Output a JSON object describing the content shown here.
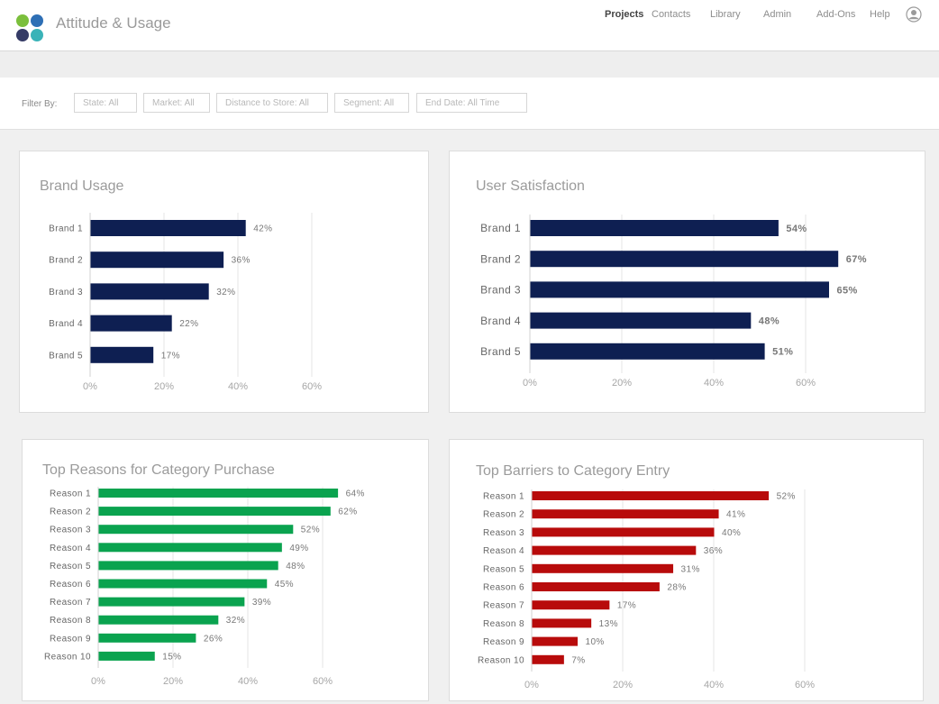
{
  "header": {
    "app_title": "Attitude & Usage",
    "nav": [
      {
        "label": "Projects",
        "active": true
      },
      {
        "label": "Contacts",
        "active": false
      },
      {
        "label": "Library",
        "active": false
      },
      {
        "label": "Admin",
        "active": false
      },
      {
        "label": "Add-Ons",
        "active": false
      },
      {
        "label": "Help",
        "active": false
      }
    ],
    "logo_colors": [
      "#7bbf3c",
      "#2e6fb5",
      "#353b66",
      "#3ab3b8"
    ]
  },
  "filters": {
    "label": "Filter By:",
    "items": [
      "State: All",
      "Market: All",
      "Distance to Store: All",
      "Segment: All",
      "End Date: All Time"
    ]
  },
  "chart_data": [
    {
      "type": "bar",
      "orientation": "horizontal",
      "title": "Brand Usage",
      "categories": [
        "Brand 1",
        "Brand 2",
        "Brand 3",
        "Brand 4",
        "Brand 5"
      ],
      "values": [
        42,
        36,
        32,
        22,
        17
      ],
      "value_suffix": "%",
      "xlim": [
        0,
        70
      ],
      "ticks": [
        "0%",
        "20%",
        "40%",
        "60%"
      ],
      "tick_values": [
        0,
        20,
        40,
        60
      ],
      "color": "#0e1f52"
    },
    {
      "type": "bar",
      "orientation": "horizontal",
      "title": "User Satisfaction",
      "categories": [
        "Brand 1",
        "Brand 2",
        "Brand 3",
        "Brand 4",
        "Brand 5"
      ],
      "values": [
        54,
        67,
        65,
        48,
        51
      ],
      "value_suffix": "%",
      "xlim": [
        0,
        70
      ],
      "ticks": [
        "0%",
        "20%",
        "40%",
        "60%"
      ],
      "tick_values": [
        0,
        20,
        40,
        60
      ],
      "color": "#0e1f52"
    },
    {
      "type": "bar",
      "orientation": "horizontal",
      "title": "Top Reasons for Category Purchase",
      "categories": [
        "Reason 1",
        "Reason 2",
        "Reason 3",
        "Reason 4",
        "Reason 5",
        "Reason 6",
        "Reason 7",
        "Reason 8",
        "Reason 9",
        "Reason 10"
      ],
      "values": [
        64,
        62,
        52,
        49,
        48,
        45,
        39,
        32,
        26,
        15
      ],
      "value_suffix": "%",
      "xlim": [
        0,
        70
      ],
      "ticks": [
        "0%",
        "20%",
        "40%",
        "60%"
      ],
      "tick_values": [
        0,
        20,
        40,
        60
      ],
      "color": "#0aa34f"
    },
    {
      "type": "bar",
      "orientation": "horizontal",
      "title": "Top Barriers to Category Entry",
      "categories": [
        "Reason 1",
        "Reason 2",
        "Reason 3",
        "Reason 4",
        "Reason 5",
        "Reason 6",
        "Reason 7",
        "Reason 8",
        "Reason 9",
        "Reason 10"
      ],
      "values": [
        52,
        41,
        40,
        36,
        31,
        28,
        17,
        13,
        10,
        7
      ],
      "value_suffix": "%",
      "xlim": [
        0,
        70
      ],
      "ticks": [
        "0%",
        "20%",
        "40%",
        "60%"
      ],
      "tick_values": [
        0,
        20,
        40,
        60
      ],
      "color": "#b80b0b"
    }
  ]
}
